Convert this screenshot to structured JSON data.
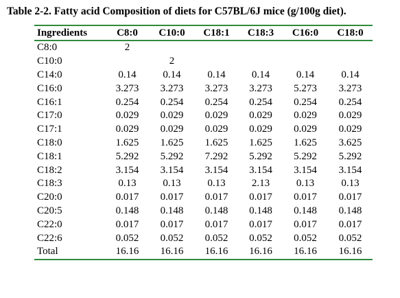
{
  "caption": "Table 2-2. Fatty acid Composition of diets for C57BL/6J mice (g/100g diet).",
  "headers": [
    "Ingredients",
    "C8:0",
    "C10:0",
    "C18:1",
    "C18:3",
    "C16:0",
    "C18:0"
  ],
  "rows": [
    [
      "C8:0",
      "2",
      "",
      "",
      "",
      "",
      ""
    ],
    [
      "C10:0",
      "",
      "2",
      "",
      "",
      "",
      ""
    ],
    [
      "C14:0",
      "0.14",
      "0.14",
      "0.14",
      "0.14",
      "0.14",
      "0.14"
    ],
    [
      "C16:0",
      "3.273",
      "3.273",
      "3.273",
      "3.273",
      "5.273",
      "3.273"
    ],
    [
      "C16:1",
      "0.254",
      "0.254",
      "0.254",
      "0.254",
      "0.254",
      "0.254"
    ],
    [
      "C17:0",
      "0.029",
      "0.029",
      "0.029",
      "0.029",
      "0.029",
      "0.029"
    ],
    [
      "C17:1",
      "0.029",
      "0.029",
      "0.029",
      "0.029",
      "0.029",
      "0.029"
    ],
    [
      "C18:0",
      "1.625",
      "1.625",
      "1.625",
      "1.625",
      "1.625",
      "3.625"
    ],
    [
      "C18:1",
      "5.292",
      "5.292",
      "7.292",
      "5.292",
      "5.292",
      "5.292"
    ],
    [
      "C18:2",
      "3.154",
      "3.154",
      "3.154",
      "3.154",
      "3.154",
      "3.154"
    ],
    [
      "C18:3",
      "0.13",
      "0.13",
      "0.13",
      "2.13",
      "0.13",
      "0.13"
    ],
    [
      "C20:0",
      "0.017",
      "0.017",
      "0.017",
      "0.017",
      "0.017",
      "0.017"
    ],
    [
      "C20:5",
      "0.148",
      "0.148",
      "0.148",
      "0.148",
      "0.148",
      "0.148"
    ],
    [
      "C22:0",
      "0.017",
      "0.017",
      "0.017",
      "0.017",
      "0.017",
      "0.017"
    ],
    [
      "C22:6",
      "0.052",
      "0.052",
      "0.052",
      "0.052",
      "0.052",
      "0.052"
    ],
    [
      "Total",
      "16.16",
      "16.16",
      "16.16",
      "16.16",
      "16.16",
      "16.16"
    ]
  ],
  "colors": {
    "rule": "#2e8b3d",
    "text": "#000000",
    "background": "#ffffff"
  }
}
